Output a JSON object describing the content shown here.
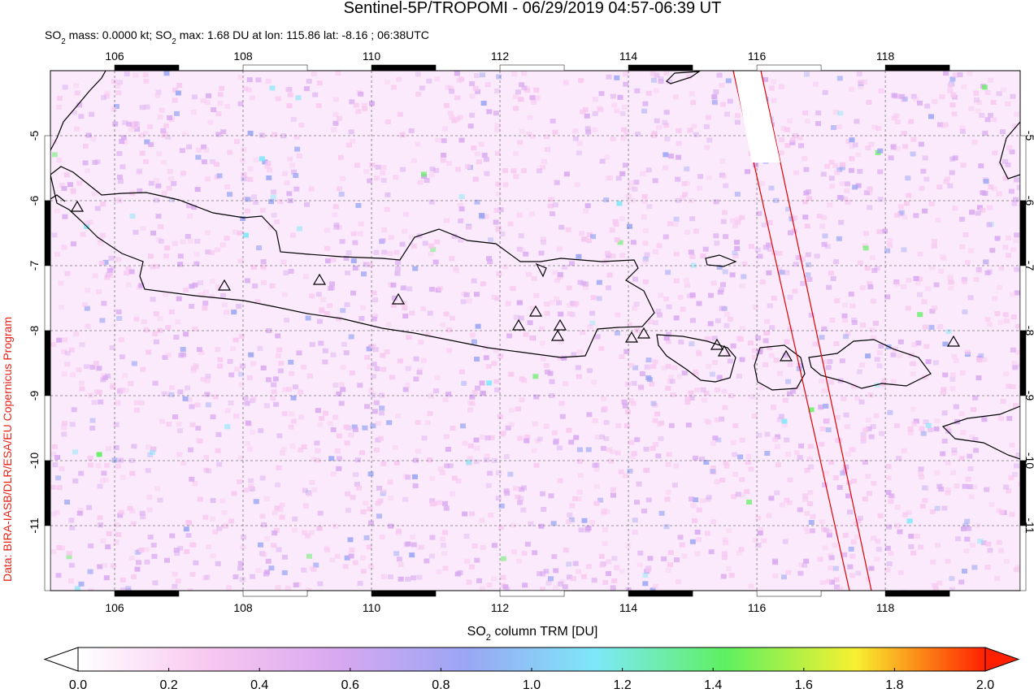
{
  "chart_data": {
    "type": "map",
    "title": "Sentinel-5P/TROPOMI - 06/29/2019 04:57-06:39 UT",
    "subtitle": [
      "SO",
      "2",
      " mass: 0.0000 kt; SO",
      "2",
      " max: 1.68 DU at lon: 115.86 lat: -8.16 ; 06:38UTC"
    ],
    "credit": "Data: BIRA-IASB/DLR/ESA/EU Copernicus Program",
    "xlim": [
      105,
      120.1
    ],
    "ylim": [
      -12,
      -4
    ],
    "xticks": [
      106,
      108,
      110,
      112,
      114,
      116,
      118
    ],
    "yticks": [
      -5,
      -6,
      -7,
      -8,
      -9,
      -10,
      -11
    ],
    "grid": true,
    "colorbar": {
      "label": [
        "SO",
        "2",
        " column TRM [DU]"
      ],
      "clim": [
        0,
        2
      ],
      "colors": [
        "#ffffff",
        "#f8c8f0",
        "#d8a8f0",
        "#9aa6f4",
        "#7de8f8",
        "#5ef060",
        "#f8f030",
        "#ff2000"
      ],
      "ticks": [
        {
          "value": 0,
          "label": "0.0"
        },
        {
          "value": 0.2,
          "label": "0.2"
        },
        {
          "value": 0.4,
          "label": "0.4"
        },
        {
          "value": 0.6,
          "label": "0.6"
        },
        {
          "value": 0.8,
          "label": "0.8"
        },
        {
          "value": 1,
          "label": "1.0"
        },
        {
          "value": 1.2,
          "label": "1.2"
        },
        {
          "value": 1.4,
          "label": "1.4"
        },
        {
          "value": 1.6,
          "label": "1.6"
        },
        {
          "value": 1.8,
          "label": "1.8"
        },
        {
          "value": 2,
          "label": "2.0"
        }
      ]
    }
  }
}
